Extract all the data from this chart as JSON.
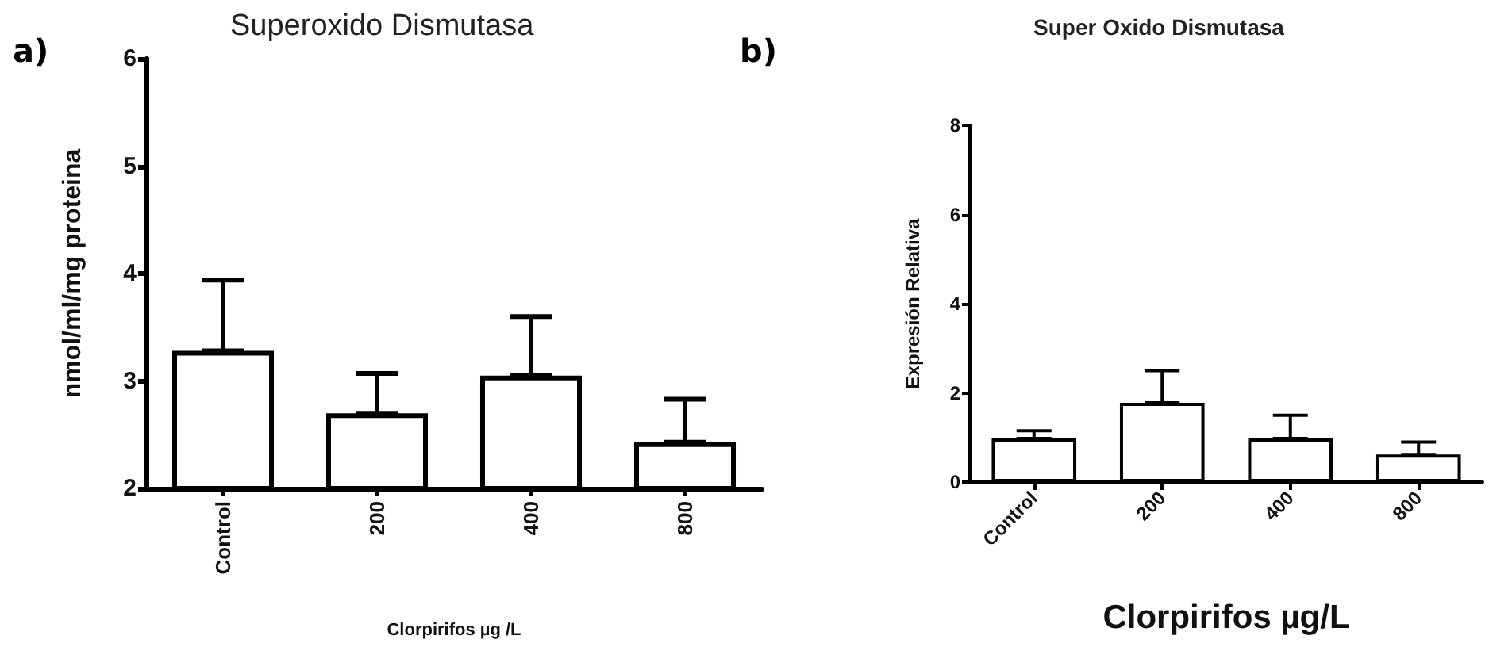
{
  "chart_data": [
    {
      "type": "bar",
      "title": "Superoxido Dismutasa",
      "xlabel": "Clorpirifos µg /L",
      "ylabel": "nmol/ml/mg proteina",
      "annotations": [
        "a)"
      ],
      "categories": [
        "Control",
        "200",
        "400",
        "800"
      ],
      "values": [
        3.28,
        2.7,
        3.05,
        2.43
      ],
      "errors": [
        [
          3.28,
          3.94
        ],
        [
          2.7,
          3.07
        ],
        [
          3.05,
          3.6
        ],
        [
          2.43,
          2.83
        ]
      ],
      "color": "#ffffff",
      "ylim": [
        2,
        6
      ],
      "yticks": [
        2,
        3,
        4,
        5,
        6
      ]
    },
    {
      "type": "bar",
      "title": "Super Oxido Dismutasa",
      "xlabel": "Clorpirifos µg/L",
      "ylabel": "Expresión Relativa",
      "annotations": [
        "b)"
      ],
      "categories": [
        "Control",
        "200",
        "400",
        "800"
      ],
      "values": [
        0.98,
        1.78,
        0.98,
        0.62
      ],
      "errors": [
        [
          0.98,
          1.15
        ],
        [
          1.78,
          2.5
        ],
        [
          0.98,
          1.5
        ],
        [
          0.62,
          0.9
        ]
      ],
      "color": "#ffffff",
      "ylim": [
        0,
        8
      ],
      "yticks": [
        0,
        2,
        4,
        6,
        8
      ]
    }
  ]
}
